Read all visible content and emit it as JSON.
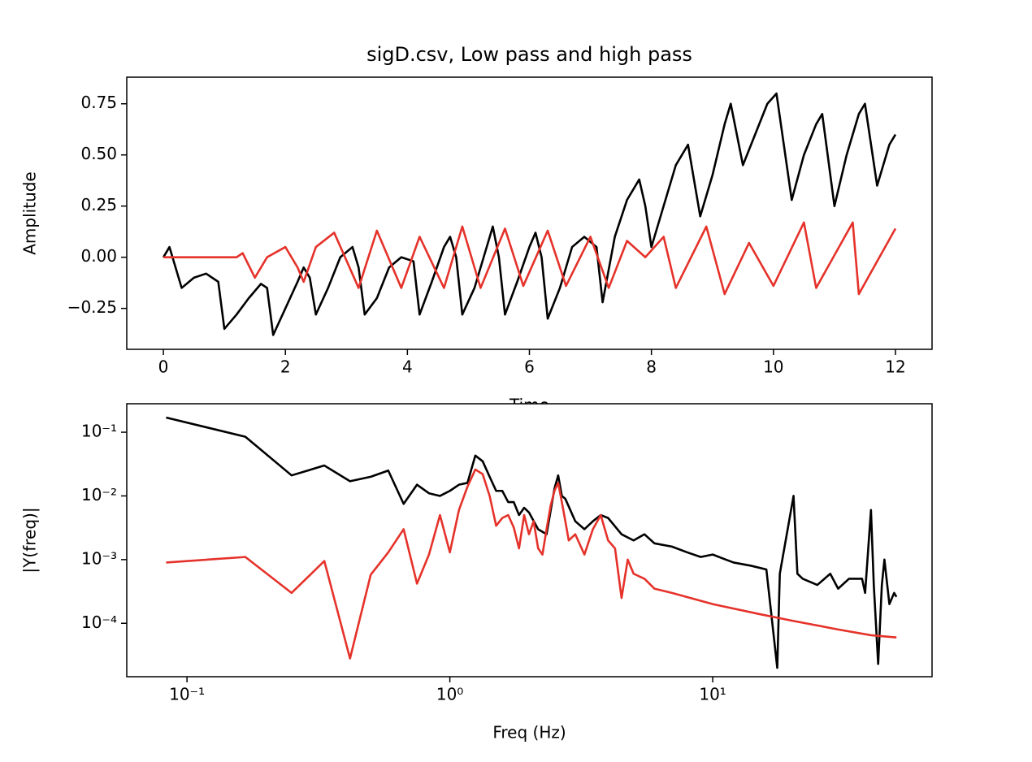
{
  "chart_data": [
    {
      "type": "line",
      "title": "sigD.csv, Low pass and high pass",
      "xlabel": "Time",
      "ylabel": "Amplitude",
      "xscale": "linear",
      "yscale": "linear",
      "xlim": [
        -0.6,
        12.6
      ],
      "ylim": [
        -0.45,
        0.88
      ],
      "xticks": [
        0,
        2,
        4,
        6,
        8,
        10,
        12
      ],
      "yticks": [
        {
          "value": -0.25,
          "label": "−0.25"
        },
        {
          "value": 0,
          "label": "0.00"
        },
        {
          "value": 0.25,
          "label": "0.25"
        },
        {
          "value": 0.5,
          "label": "0.50"
        },
        0.75
      ],
      "series": [
        {
          "color": "#000000",
          "x": [
            0,
            0.1,
            0.2,
            0.3,
            0.5,
            0.7,
            0.9,
            1.0,
            1.2,
            1.4,
            1.6,
            1.7,
            1.8,
            2.0,
            2.2,
            2.3,
            2.4,
            2.5,
            2.7,
            2.9,
            3.1,
            3.2,
            3.3,
            3.5,
            3.7,
            3.9,
            4.1,
            4.2,
            4.4,
            4.6,
            4.7,
            4.8,
            4.9,
            5.1,
            5.3,
            5.4,
            5.5,
            5.6,
            5.8,
            6.0,
            6.1,
            6.2,
            6.3,
            6.5,
            6.7,
            6.9,
            7.1,
            7.2,
            7.4,
            7.6,
            7.8,
            7.9,
            8.0,
            8.2,
            8.4,
            8.6,
            8.8,
            9.0,
            9.2,
            9.3,
            9.5,
            9.7,
            9.9,
            10.05,
            10.3,
            10.5,
            10.7,
            10.8,
            11.0,
            11.2,
            11.4,
            11.5,
            11.7,
            11.9,
            12.0
          ],
          "values": [
            0.0,
            0.05,
            -0.05,
            -0.15,
            -0.1,
            -0.08,
            -0.12,
            -0.35,
            -0.28,
            -0.2,
            -0.13,
            -0.15,
            -0.38,
            -0.25,
            -0.12,
            -0.05,
            -0.1,
            -0.28,
            -0.15,
            0.0,
            0.05,
            -0.05,
            -0.28,
            -0.2,
            -0.05,
            0.0,
            -0.02,
            -0.28,
            -0.12,
            0.05,
            0.1,
            0.0,
            -0.28,
            -0.15,
            0.05,
            0.15,
            0.0,
            -0.28,
            -0.12,
            0.05,
            0.12,
            0.0,
            -0.3,
            -0.15,
            0.05,
            0.1,
            0.05,
            -0.22,
            0.1,
            0.28,
            0.38,
            0.25,
            0.05,
            0.25,
            0.45,
            0.55,
            0.2,
            0.4,
            0.65,
            0.75,
            0.45,
            0.6,
            0.75,
            0.8,
            0.28,
            0.5,
            0.65,
            0.7,
            0.25,
            0.5,
            0.7,
            0.75,
            0.35,
            0.55,
            0.6
          ]
        },
        {
          "color": "#e5322a",
          "x": [
            0,
            0.6,
            1.2,
            1.3,
            1.5,
            1.7,
            2.0,
            2.2,
            2.3,
            2.5,
            2.8,
            3.2,
            3.5,
            3.9,
            4.2,
            4.6,
            4.9,
            5.2,
            5.6,
            5.9,
            6.3,
            6.6,
            7.0,
            7.3,
            7.6,
            7.9,
            8.2,
            8.4,
            8.9,
            9.2,
            9.6,
            10.0,
            10.5,
            10.7,
            11.3,
            11.4,
            12.0
          ],
          "values": [
            0.0,
            0.0,
            0.0,
            0.02,
            -0.1,
            0.0,
            0.05,
            -0.05,
            -0.12,
            0.05,
            0.12,
            -0.15,
            0.13,
            -0.15,
            0.1,
            -0.15,
            0.15,
            -0.15,
            0.14,
            -0.14,
            0.13,
            -0.14,
            0.1,
            -0.15,
            0.08,
            0.0,
            0.1,
            -0.15,
            0.15,
            -0.18,
            0.07,
            -0.14,
            0.17,
            -0.15,
            0.17,
            -0.18,
            0.14
          ]
        }
      ]
    },
    {
      "type": "line",
      "xlabel": "Freq (Hz)",
      "ylabel": "|Y(freq)|",
      "xscale": "log",
      "yscale": "log",
      "xlim": [
        0.059,
        68.3
      ],
      "ylim": [
        1.45e-05,
        0.28
      ],
      "xticks": [
        {
          "value": 0.1,
          "label": "10⁻¹"
        },
        {
          "value": 1,
          "label": "10⁰"
        },
        {
          "value": 10,
          "label": "10¹"
        }
      ],
      "yticks": [
        {
          "value": 0.0001,
          "label": "10⁻⁴"
        },
        {
          "value": 0.001,
          "label": "10⁻³"
        },
        {
          "value": 0.01,
          "label": "10⁻²"
        },
        {
          "value": 0.1,
          "label": "10⁻¹"
        }
      ],
      "series": [
        {
          "color": "#000000",
          "x": [
            0.0833,
            0.1667,
            0.25,
            0.333,
            0.417,
            0.5,
            0.583,
            0.667,
            0.75,
            0.833,
            0.917,
            1.0,
            1.083,
            1.167,
            1.25,
            1.333,
            1.417,
            1.5,
            1.583,
            1.667,
            1.75,
            1.833,
            1.917,
            2.0,
            2.167,
            2.333,
            2.5,
            2.583,
            2.667,
            2.75,
            3.0,
            3.25,
            3.5,
            3.75,
            4.0,
            4.5,
            5.0,
            5.5,
            6.0,
            7.0,
            8.0,
            9.0,
            10,
            12,
            14,
            16,
            17.6,
            18,
            20.3,
            21,
            22,
            25,
            28,
            30,
            33,
            37,
            38,
            40,
            41,
            42.6,
            44,
            45,
            47,
            49,
            50
          ],
          "values": [
            0.17,
            0.085,
            0.021,
            0.03,
            0.017,
            0.02,
            0.025,
            0.0075,
            0.015,
            0.011,
            0.01,
            0.012,
            0.015,
            0.016,
            0.043,
            0.035,
            0.02,
            0.012,
            0.012,
            0.008,
            0.008,
            0.005,
            0.0065,
            0.0055,
            0.003,
            0.0025,
            0.013,
            0.021,
            0.01,
            0.009,
            0.004,
            0.003,
            0.004,
            0.005,
            0.0045,
            0.0025,
            0.002,
            0.0025,
            0.0018,
            0.0016,
            0.0013,
            0.0011,
            0.0012,
            0.0009,
            0.0008,
            0.0007,
            2e-05,
            0.0006,
            0.01,
            0.0006,
            0.0005,
            0.0004,
            0.0006,
            0.00035,
            0.0005,
            0.0005,
            0.0003,
            0.006,
            0.0004,
            2.3e-05,
            0.0004,
            0.001,
            0.0002,
            0.0003,
            0.00026
          ]
        },
        {
          "color": "#e5322a",
          "x": [
            0.0833,
            0.1667,
            0.25,
            0.333,
            0.417,
            0.5,
            0.583,
            0.667,
            0.75,
            0.833,
            0.917,
            1.0,
            1.083,
            1.167,
            1.25,
            1.333,
            1.417,
            1.5,
            1.583,
            1.667,
            1.75,
            1.833,
            1.917,
            2.0,
            2.083,
            2.167,
            2.25,
            2.333,
            2.417,
            2.5,
            2.583,
            2.667,
            2.75,
            2.833,
            3.0,
            3.25,
            3.5,
            3.75,
            4.0,
            4.25,
            4.5,
            4.75,
            5.0,
            5.5,
            6.0,
            7.0,
            10,
            15,
            20,
            30,
            40,
            50
          ],
          "values": [
            0.0009,
            0.0011,
            0.0003,
            0.00095,
            2.8e-05,
            0.00058,
            0.0013,
            0.003,
            0.00042,
            0.0012,
            0.005,
            0.0013,
            0.006,
            0.014,
            0.026,
            0.022,
            0.01,
            0.0034,
            0.0045,
            0.005,
            0.0032,
            0.0015,
            0.005,
            0.0025,
            0.004,
            0.0015,
            0.0012,
            0.003,
            0.007,
            0.012,
            0.016,
            0.008,
            0.004,
            0.002,
            0.0025,
            0.0012,
            0.003,
            0.005,
            0.002,
            0.0015,
            0.00025,
            0.001,
            0.0006,
            0.0005,
            0.00035,
            0.0003,
            0.0002,
            0.00014,
            0.00011,
            8e-05,
            6.5e-05,
            6e-05
          ]
        }
      ]
    }
  ]
}
